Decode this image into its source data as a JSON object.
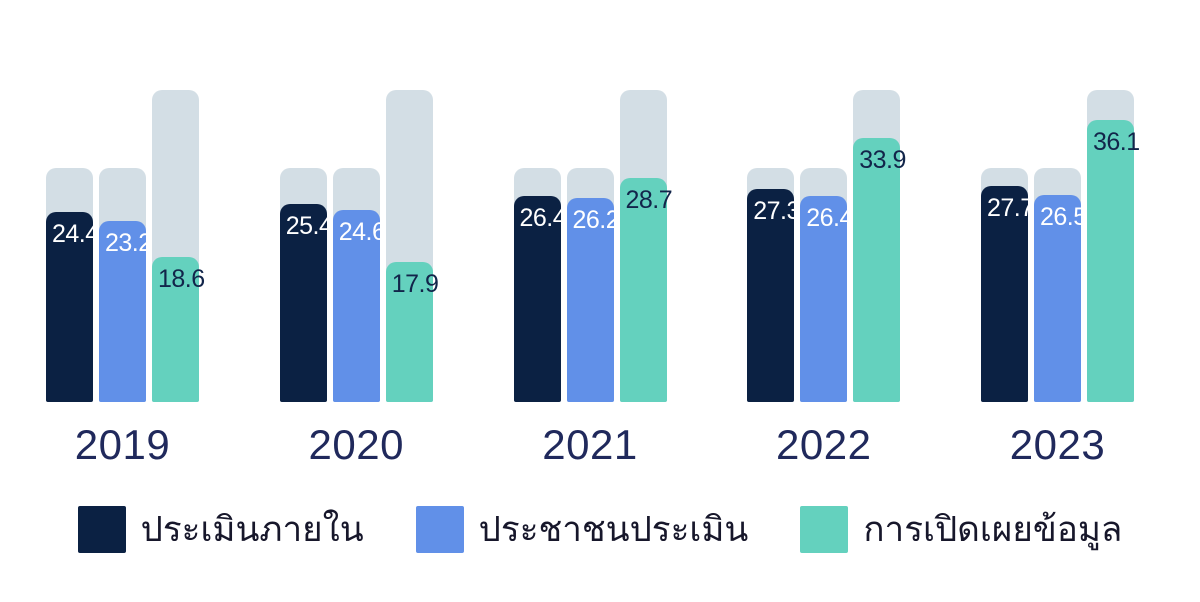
{
  "chart_data": {
    "type": "bar",
    "title": "",
    "categories": [
      "2019",
      "2020",
      "2021",
      "2022",
      "2023"
    ],
    "series": [
      {
        "name": "ประเมินภายใน",
        "color": "#0B2143",
        "value_label_color": "#FFFFFF",
        "max_score": 30,
        "values": [
          24.4,
          25.4,
          26.4,
          27.3,
          27.7
        ]
      },
      {
        "name": "ประชาชนประเมิน",
        "color": "#6190E8",
        "value_label_color": "#FFFFFF",
        "max_score": 30,
        "values": [
          23.2,
          24.6,
          26.2,
          26.4,
          26.5
        ]
      },
      {
        "name": "การเปิดเผยข้อมูล",
        "color": "#64D1BE",
        "value_label_color": "#12254A",
        "max_score": 40,
        "values": [
          18.6,
          17.9,
          28.7,
          33.9,
          36.1
        ]
      }
    ],
    "track_color": "#D3DEE5",
    "background_color": "#FFFFFF",
    "category_label_color": "#20295C",
    "legend_text_color": "#17172B",
    "ylim": [
      0,
      40
    ],
    "grid": false,
    "legend_position": "bottom",
    "value_labels_position": "inside-top"
  }
}
